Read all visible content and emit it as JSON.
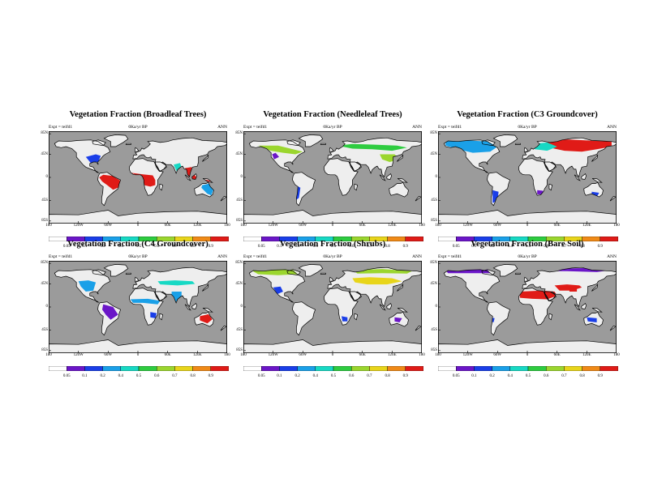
{
  "colorscale": {
    "colors": [
      "#ffffff",
      "#6b16c8",
      "#1a3ee8",
      "#1aa0e8",
      "#17d9c4",
      "#2ecc40",
      "#9bd62e",
      "#e8d51a",
      "#f08a17",
      "#e01b17"
    ],
    "labels": [
      "0.05",
      "0.1",
      "0.2",
      "0.4",
      "0.5",
      "0.6",
      "0.7",
      "0.8",
      "0.9"
    ]
  },
  "lon_labels": [
    "180",
    "120W",
    "60W",
    "0",
    "60E",
    "120E",
    "180"
  ],
  "lat_labels": [
    "85N",
    "45N",
    "0",
    "45S",
    "85S"
  ],
  "lat_values": [
    85,
    45,
    0,
    -45,
    -85
  ],
  "lon_values": [
    -180,
    -120,
    -60,
    0,
    60,
    120,
    180
  ],
  "ocean_color": "#9b9b9b",
  "panels": [
    {
      "title": "Vegetation Fraction (Broadleaf Trees)",
      "expt": "Expt = teifd1",
      "date": "0Ka/yr BP",
      "season": "ANN",
      "regions": [
        {
          "c": 9,
          "pts": [
            [
              -70,
              5
            ],
            [
              -52,
              3
            ],
            [
              -36,
              -6
            ],
            [
              -40,
              -20
            ],
            [
              -50,
              -24
            ],
            [
              -62,
              -15
            ],
            [
              -72,
              -8
            ],
            [
              -78,
              0
            ]
          ]
        },
        {
          "c": 9,
          "pts": [
            [
              -15,
              9
            ],
            [
              10,
              6
            ],
            [
              30,
              4
            ],
            [
              35,
              -5
            ],
            [
              35,
              -15
            ],
            [
              25,
              -18
            ],
            [
              12,
              -15
            ],
            [
              10,
              0
            ]
          ]
        },
        {
          "c": 9,
          "pts": [
            [
              95,
              18
            ],
            [
              108,
              20
            ],
            [
              112,
              8
            ],
            [
              120,
              -2
            ],
            [
              140,
              -5
            ],
            [
              150,
              -8
            ],
            [
              120,
              -8
            ],
            [
              100,
              0
            ],
            [
              95,
              10
            ]
          ]
        },
        {
          "c": 3,
          "pts": [
            [
              130,
              -15
            ],
            [
              145,
              -12
            ],
            [
              152,
              -25
            ],
            [
              148,
              -35
            ],
            [
              140,
              -32
            ],
            [
              128,
              -20
            ]
          ]
        },
        {
          "c": 2,
          "pts": [
            [
              -105,
              40
            ],
            [
              -85,
              45
            ],
            [
              -75,
              42
            ],
            [
              -80,
              30
            ],
            [
              -95,
              28
            ]
          ]
        },
        {
          "c": 4,
          "pts": [
            [
              72,
              25
            ],
            [
              85,
              28
            ],
            [
              88,
              20
            ],
            [
              78,
              12
            ]
          ]
        }
      ]
    },
    {
      "title": "Vegetation Fraction (Needleleaf Trees)",
      "expt": "Expt = teifd1",
      "date": "0Ka/yr BP",
      "season": "ANN",
      "regions": [
        {
          "c": 6,
          "pts": [
            [
              -150,
              62
            ],
            [
              -110,
              62
            ],
            [
              -80,
              55
            ],
            [
              -60,
              50
            ],
            [
              -75,
              45
            ],
            [
              -100,
              48
            ],
            [
              -125,
              52
            ]
          ]
        },
        {
          "c": 5,
          "pts": [
            [
              10,
              62
            ],
            [
              40,
              65
            ],
            [
              80,
              64
            ],
            [
              130,
              62
            ],
            [
              150,
              58
            ],
            [
              120,
              52
            ],
            [
              80,
              55
            ],
            [
              40,
              56
            ]
          ]
        },
        {
          "c": 6,
          "pts": [
            [
              95,
              45
            ],
            [
              125,
              45
            ],
            [
              135,
              35
            ],
            [
              115,
              30
            ],
            [
              100,
              35
            ]
          ]
        },
        {
          "c": 2,
          "pts": [
            [
              -75,
              -15
            ],
            [
              -65,
              -20
            ],
            [
              -68,
              -40
            ],
            [
              -75,
              -45
            ]
          ]
        },
        {
          "c": 1,
          "pts": [
            [
              -122,
              45
            ],
            [
              -115,
              48
            ],
            [
              -108,
              40
            ],
            [
              -118,
              35
            ]
          ]
        }
      ]
    },
    {
      "title": "Vegetation Fraction (C3 Groundcover)",
      "expt": "Expt = teifd1",
      "date": "0Ka/yr BP",
      "season": "ANN",
      "regions": [
        {
          "c": 3,
          "pts": [
            [
              -165,
              70
            ],
            [
              -120,
              72
            ],
            [
              -80,
              70
            ],
            [
              -60,
              60
            ],
            [
              -75,
              50
            ],
            [
              -110,
              48
            ],
            [
              -140,
              55
            ],
            [
              -165,
              62
            ]
          ]
        },
        {
          "c": 9,
          "pts": [
            [
              40,
              72
            ],
            [
              80,
              74
            ],
            [
              120,
              72
            ],
            [
              170,
              70
            ],
            [
              170,
              60
            ],
            [
              140,
              55
            ],
            [
              110,
              50
            ],
            [
              75,
              52
            ],
            [
              45,
              58
            ]
          ]
        },
        {
          "c": 4,
          "pts": [
            [
              10,
              65
            ],
            [
              40,
              68
            ],
            [
              60,
              60
            ],
            [
              40,
              52
            ],
            [
              15,
              55
            ]
          ]
        },
        {
          "c": 2,
          "pts": [
            [
              -70,
              -25
            ],
            [
              -58,
              -28
            ],
            [
              -60,
              -45
            ],
            [
              -70,
              -50
            ]
          ]
        },
        {
          "c": 1,
          "pts": [
            [
              20,
              -25
            ],
            [
              32,
              -26
            ],
            [
              30,
              -33
            ],
            [
              20,
              -33
            ]
          ]
        },
        {
          "c": 2,
          "pts": [
            [
              130,
              -28
            ],
            [
              145,
              -30
            ],
            [
              140,
              -38
            ],
            [
              130,
              -36
            ]
          ]
        }
      ]
    },
    {
      "title": "Vegetation Fraction (C4 Groundcover)",
      "expt": "Expt = teifd1",
      "date": "0Ka/yr BP",
      "season": "ANN",
      "regions": [
        {
          "c": 3,
          "pts": [
            [
              -120,
              50
            ],
            [
              -100,
              52
            ],
            [
              -85,
              48
            ],
            [
              -90,
              32
            ],
            [
              -105,
              30
            ],
            [
              -115,
              40
            ]
          ]
        },
        {
          "c": 1,
          "pts": [
            [
              -70,
              5
            ],
            [
              -50,
              0
            ],
            [
              -40,
              -15
            ],
            [
              -55,
              -25
            ],
            [
              -65,
              -15
            ],
            [
              -72,
              -5
            ]
          ]
        },
        {
          "c": 3,
          "pts": [
            [
              -15,
              15
            ],
            [
              20,
              16
            ],
            [
              45,
              12
            ],
            [
              40,
              5
            ],
            [
              10,
              8
            ],
            [
              -10,
              8
            ]
          ]
        },
        {
          "c": 4,
          "pts": [
            [
              40,
              50
            ],
            [
              75,
              52
            ],
            [
              110,
              50
            ],
            [
              115,
              45
            ],
            [
              80,
              42
            ],
            [
              45,
              44
            ]
          ]
        },
        {
          "c": 3,
          "pts": [
            [
              68,
              30
            ],
            [
              88,
              30
            ],
            [
              88,
              18
            ],
            [
              76,
              10
            ],
            [
              68,
              22
            ]
          ]
        },
        {
          "c": 9,
          "pts": [
            [
              125,
              -18
            ],
            [
              142,
              -14
            ],
            [
              150,
              -24
            ],
            [
              140,
              -32
            ],
            [
              125,
              -26
            ]
          ]
        },
        {
          "c": 2,
          "pts": [
            [
              25,
              -10
            ],
            [
              38,
              -12
            ],
            [
              35,
              -22
            ],
            [
              25,
              -20
            ]
          ]
        }
      ]
    },
    {
      "title": "Vegetation Fraction (Shrubs)",
      "expt": "Expt = teifd1",
      "date": "0Ka/yr BP",
      "season": "ANN",
      "regions": [
        {
          "c": 6,
          "pts": [
            [
              -165,
              72
            ],
            [
              -120,
              74
            ],
            [
              -80,
              72
            ],
            [
              -70,
              64
            ],
            [
              -110,
              62
            ],
            [
              -150,
              64
            ]
          ]
        },
        {
          "c": 7,
          "pts": [
            [
              40,
              56
            ],
            [
              75,
              58
            ],
            [
              120,
              56
            ],
            [
              140,
              50
            ],
            [
              110,
              44
            ],
            [
              70,
              44
            ],
            [
              45,
              48
            ]
          ]
        },
        {
          "c": 6,
          "pts": [
            [
              40,
              72
            ],
            [
              100,
              74
            ],
            [
              160,
              70
            ],
            [
              150,
              65
            ],
            [
              100,
              66
            ],
            [
              50,
              65
            ]
          ]
        },
        {
          "c": 2,
          "pts": [
            [
              -120,
              38
            ],
            [
              -105,
              40
            ],
            [
              -100,
              30
            ],
            [
              -112,
              25
            ]
          ]
        },
        {
          "c": 2,
          "pts": [
            [
              18,
              -18
            ],
            [
              30,
              -20
            ],
            [
              30,
              -28
            ],
            [
              20,
              -28
            ]
          ]
        },
        {
          "c": 1,
          "pts": [
            [
              125,
              -20
            ],
            [
              140,
              -22
            ],
            [
              135,
              -30
            ],
            [
              125,
              -28
            ]
          ]
        }
      ]
    },
    {
      "title": "Vegetation Fraction (Bare Soil)",
      "expt": "Expt = teifd1",
      "date": "0Ka/yr BP",
      "season": "ANN",
      "regions": [
        {
          "c": 9,
          "pts": [
            [
              -15,
              30
            ],
            [
              30,
              32
            ],
            [
              55,
              30
            ],
            [
              60,
              22
            ],
            [
              40,
              15
            ],
            [
              10,
              16
            ],
            [
              -15,
              18
            ]
          ]
        },
        {
          "c": 9,
          "pts": [
            [
              55,
              42
            ],
            [
              80,
              44
            ],
            [
              105,
              42
            ],
            [
              110,
              38
            ],
            [
              90,
              32
            ],
            [
              65,
              32
            ]
          ]
        },
        {
          "c": 9,
          "pts": [
            [
              85,
              36
            ],
            [
              100,
              36
            ],
            [
              100,
              30
            ],
            [
              85,
              30
            ]
          ]
        },
        {
          "c": 1,
          "pts": [
            [
              -165,
              72
            ],
            [
              -120,
              74
            ],
            [
              -80,
              72
            ],
            [
              -75,
              66
            ],
            [
              -120,
              66
            ],
            [
              -160,
              66
            ]
          ]
        },
        {
          "c": 1,
          "pts": [
            [
              30,
              74
            ],
            [
              120,
              76
            ],
            [
              170,
              72
            ],
            [
              140,
              68
            ],
            [
              80,
              70
            ],
            [
              40,
              70
            ]
          ]
        },
        {
          "c": 2,
          "pts": [
            [
              120,
              -20
            ],
            [
              140,
              -22
            ],
            [
              140,
              -30
            ],
            [
              122,
              -28
            ]
          ]
        },
        {
          "c": 2,
          "pts": [
            [
              -75,
              -20
            ],
            [
              -66,
              -22
            ],
            [
              -68,
              -30
            ],
            [
              -74,
              -28
            ]
          ]
        }
      ]
    }
  ]
}
